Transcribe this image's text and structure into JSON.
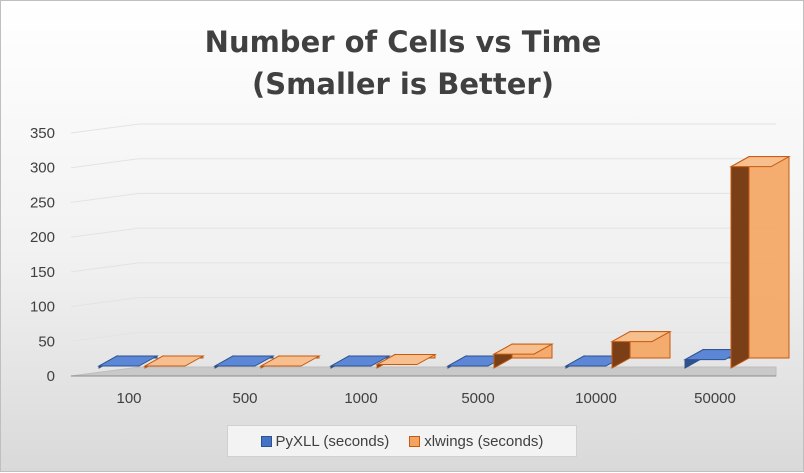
{
  "chart_data": {
    "type": "bar",
    "style": "3d-column",
    "title": [
      "Number of Cells vs Time",
      "(Smaller is Better)"
    ],
    "categories": [
      "100",
      "500",
      "1000",
      "5000",
      "10000",
      "50000"
    ],
    "series": [
      {
        "name": "PyXLL (seconds)",
        "values": [
          0.1,
          0.3,
          0.5,
          1.5,
          2.5,
          12
        ],
        "color": "#4472c4"
      },
      {
        "name": "xlwings (seconds)",
        "values": [
          0.5,
          2,
          5,
          20,
          38,
          290
        ],
        "color": "#ed7d31"
      }
    ],
    "yticks": [
      "0",
      "50",
      "100",
      "150",
      "200",
      "250",
      "300",
      "350"
    ],
    "ylim": [
      0,
      350
    ],
    "grid": true,
    "legend": "bottom"
  }
}
